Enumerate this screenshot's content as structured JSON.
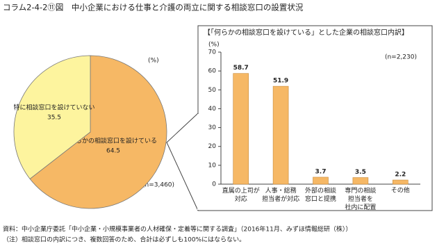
{
  "title": "コラム2-4-2⑪図　中小企業における仕事と介護の両立に関する相談窓口の設置状況",
  "chart_data": [
    {
      "type": "pie",
      "unit_label": "(%)",
      "n_label": "(n=3,460)",
      "categories": [
        "何らかの相談窓口を設けている",
        "特に相談窓口を設けていない"
      ],
      "values": [
        64.5,
        35.5
      ],
      "colors": [
        "#f6b865",
        "#fdf49e"
      ]
    },
    {
      "type": "bar",
      "title": "【「何らかの相談窓口を設けている」とした企業の相談窓口内訳】",
      "ylabel": "(%)",
      "n_label": "(n=2,230)",
      "categories": [
        "直属の上司が\n対応",
        "人事・総務\n担当者が対応",
        "外部の相談\n窓口と提携",
        "専門の相談\n担当者を\n社内に配置",
        "その他"
      ],
      "values": [
        58.7,
        51.9,
        3.7,
        3.5,
        2.2
      ],
      "color": "#f6b865",
      "ylim": [
        0,
        70
      ],
      "yticks": [
        0,
        10,
        20,
        30,
        40,
        50,
        60,
        70
      ]
    }
  ],
  "notes": [
    "資料：中小企業庁委託「中小企業・小規模事業者の人材確保・定着等に関する調査」（2016年11月、みずほ情報総研（株））",
    "（注）相談窓口の内訳につき、複数回答のため、合計は必ずしも100%にはならない。"
  ]
}
